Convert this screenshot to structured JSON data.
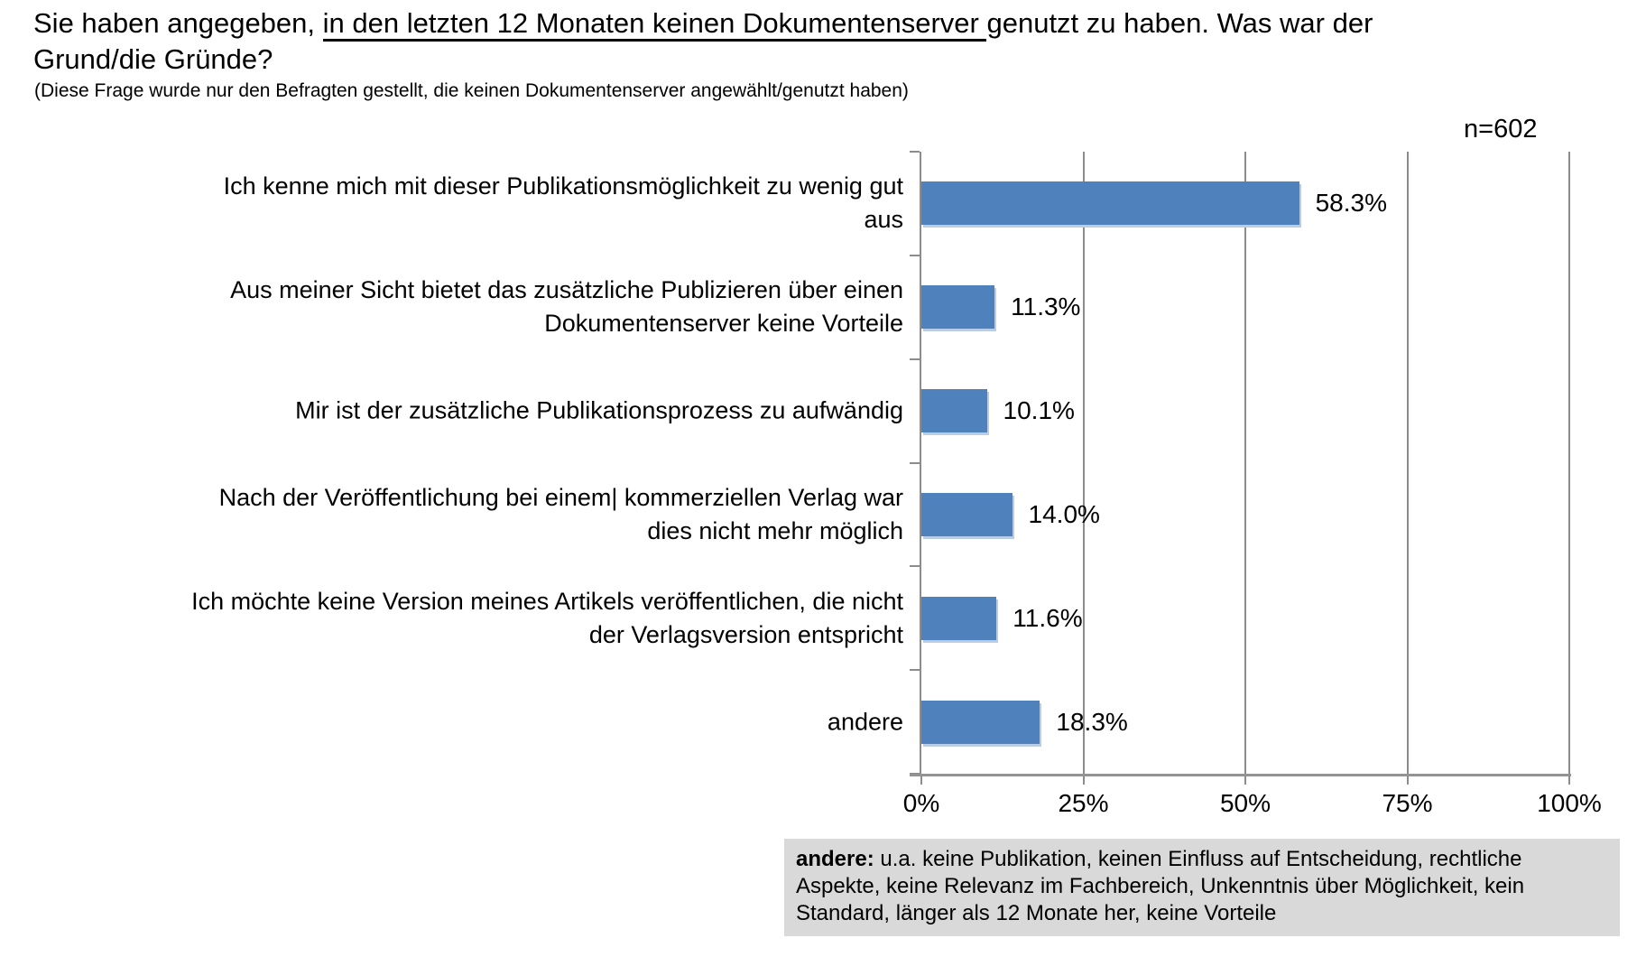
{
  "title": {
    "line1_pre": "Sie haben angegeben, ",
    "line1_underlined": "in den letzten 12 Monaten keinen Dokumentenserver ",
    "line1_post": "genutzt zu haben. Was war der",
    "line2": "Grund/die Gründe?",
    "subtitle": "(Diese Frage wurde nur den Befragten gestellt, die keinen Dokumentenserver angewählt/genutzt haben)"
  },
  "sample_size_label": "n=602",
  "chart_data": {
    "type": "bar",
    "orientation": "horizontal",
    "title": "",
    "xlabel": "",
    "ylabel": "",
    "n": 602,
    "categories": [
      [
        "Ich kenne mich mit dieser Publikationsmöglichkeit zu wenig gut",
        "aus"
      ],
      [
        "Aus meiner Sicht bietet das zusätzliche Publizieren über einen",
        "Dokumentenserver keine Vorteile"
      ],
      [
        "Mir ist der zusätzliche Publikationsprozess zu aufwändig"
      ],
      [
        "Nach der Veröffentlichung bei einem| kommerziellen Verlag war",
        "dies nicht mehr möglich"
      ],
      [
        "Ich möchte keine Version meines Artikels veröffentlichen, die nicht",
        "der Verlagsversion entspricht"
      ],
      [
        "andere"
      ]
    ],
    "values": [
      58.3,
      11.3,
      10.1,
      14.0,
      11.6,
      18.3
    ],
    "value_labels": [
      "58.3%",
      "11.3%",
      "10.1%",
      "14.0%",
      "11.6%",
      "18.3%"
    ],
    "x_axis": {
      "range": [
        0,
        100
      ],
      "tick_labels": [
        "0%",
        "25%",
        "50%",
        "75%",
        "100%"
      ],
      "grid": true
    },
    "legend": "none",
    "bar_color": "#4f81bd",
    "bar_edge_color": "#b9cce8",
    "grid_color": "#8c8c8c"
  },
  "footnote": {
    "bold_prefix": "andere:",
    "text": " u.a. keine Publikation, keinen Einfluss auf Entscheidung, rechtliche Aspekte, keine Relevanz im Fachbereich, Unkenntnis über Möglichkeit, kein Standard, länger als 12 Monate her, keine Vorteile",
    "background": "#d9d9d9"
  }
}
